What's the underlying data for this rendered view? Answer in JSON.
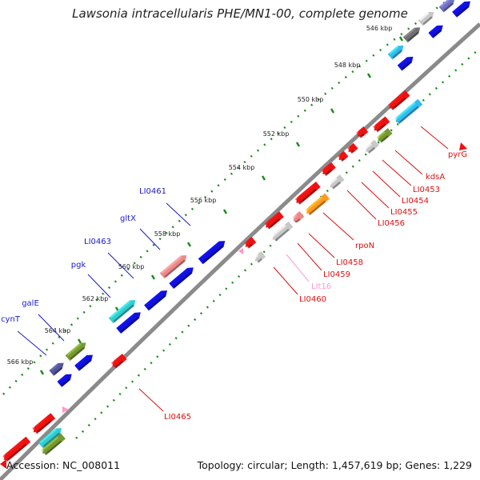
{
  "title": "Lawsonia intracellularis PHE/MN1-00, complete genome",
  "footer": {
    "accession": "Accession: NC_008011",
    "summary": "Topology: circular; Length: 1,457,619 bp; Genes: 1,229"
  },
  "colors": {
    "background": "#ffffff",
    "backbone": "#9a9a9a",
    "tick_dots": "#1e8c1e",
    "label_plus_strand": "#1a1acc",
    "label_minus_strand": "#dd1111",
    "label_pseudo": "#ff99cc"
  },
  "ticks": [
    "546 kbp",
    "548 kbp",
    "550 kbp",
    "552 kbp",
    "554 kbp",
    "556 kbp",
    "558 kbp",
    "560 kbp",
    "562 kbp",
    "564 kbp",
    "566 kbp"
  ],
  "labels": {
    "plus": [
      "LI0461",
      "gltX",
      "LI0463",
      "pgk",
      "galE",
      "cynT"
    ],
    "minus": [
      "pyrG",
      "kdsA",
      "LI0453",
      "LI0454",
      "LI0455",
      "LI0456",
      "rpoN",
      "LI0458",
      "LI0459",
      "LIt16",
      "LI0460",
      "LI0465"
    ]
  }
}
